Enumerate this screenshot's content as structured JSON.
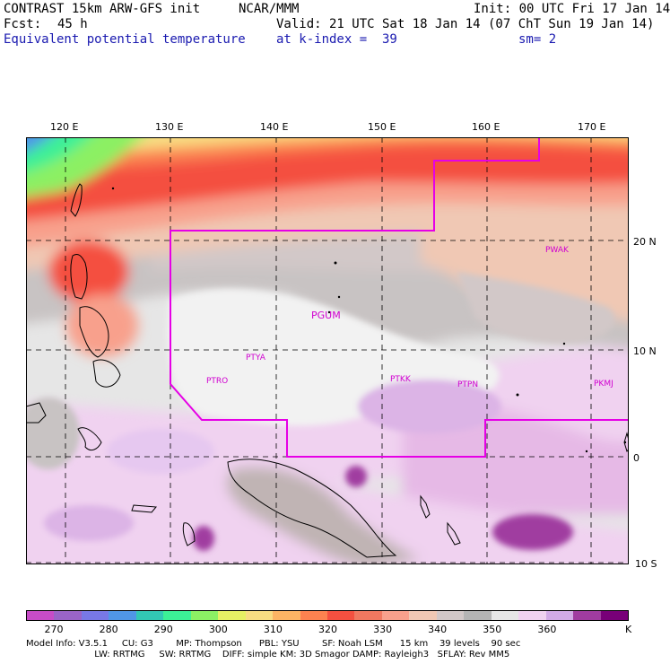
{
  "header": {
    "model_title": "CONTRAST 15km ARW-GFS init",
    "org": "NCAR/MMM",
    "init": "Init: 00 UTC Fri 17 Jan 14",
    "fcst_label": "Fcst:",
    "fcst_value": "45 h",
    "valid": "Valid: 21 UTC Sat 18 Jan 14 (07 ChT Sun 19 Jan 14)",
    "field": "Equivalent potential temperature",
    "level": "at k-index =  39",
    "smooth": "sm= 2"
  },
  "axes": {
    "lon_labels": [
      "120 E",
      "130 E",
      "140 E",
      "150 E",
      "160 E",
      "170 E"
    ],
    "lat_labels": [
      "20 N",
      "10 N",
      "0",
      "10 S"
    ]
  },
  "stations": [
    {
      "id": "PWAK"
    },
    {
      "id": "PGUM"
    },
    {
      "id": "PTYA"
    },
    {
      "id": "PTRO"
    },
    {
      "id": "PTKK"
    },
    {
      "id": "PTPN"
    },
    {
      "id": "PKMJ"
    }
  ],
  "colorbar": {
    "colors": [
      "#c84cc8",
      "#9a64c8",
      "#7878e6",
      "#5096e6",
      "#32c8b4",
      "#3cf096",
      "#8cf064",
      "#e6f064",
      "#f8dc82",
      "#fcb464",
      "#fc8250",
      "#f45040",
      "#f07860",
      "#f8a08c",
      "#f0c8b4",
      "#d2c8c8",
      "#b4b4b4",
      "#e6e6e6",
      "#f0d2f0",
      "#d2aae6",
      "#a03ca0",
      "#780078"
    ],
    "labels": [
      "270",
      "280",
      "290",
      "300",
      "310",
      "320",
      "330",
      "340",
      "350",
      "360"
    ],
    "unit": "K"
  },
  "footer": {
    "line1": "Model Info: V3.5.1     CU: G3        MP: Thompson      PBL: YSU        SF: Noah LSM      15 km    39 levels    90 sec",
    "line2": "                        LW: RRTMG     SW: RRTMG    DIFF: simple KM: 3D Smagor DAMP: Rayleigh3   SFLAY: Rev MM5"
  }
}
